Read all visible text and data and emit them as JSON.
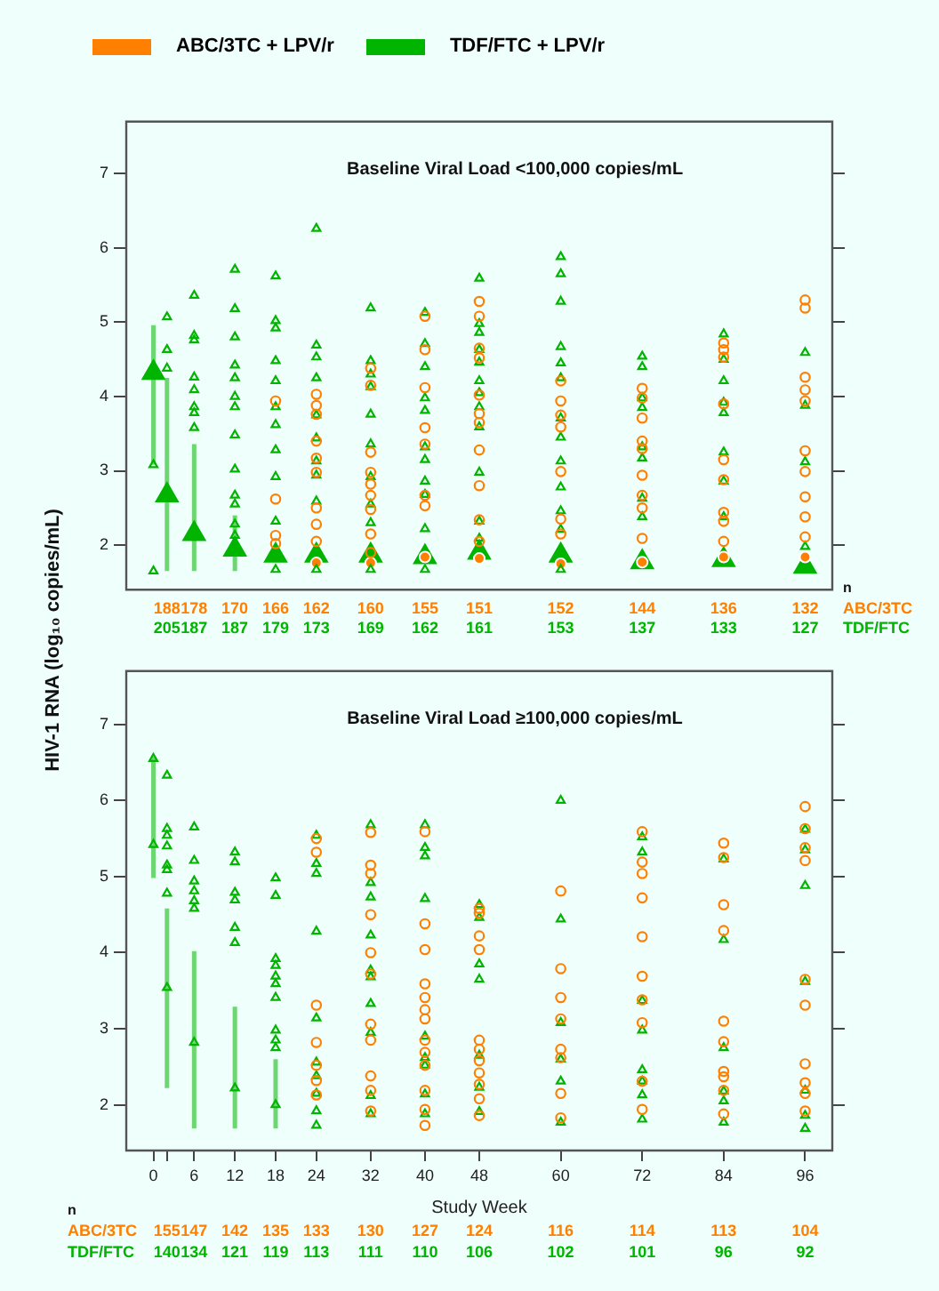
{
  "chart_data": [
    {
      "type": "scatter",
      "title": "Baseline Viral Load <100,000 copies/mL",
      "ylabel": "HIV-1 RNA (log₁₀ copies/mL)",
      "legend": "top",
      "tick_labels": "y",
      "xlim": [
        -4,
        100
      ],
      "ylim": [
        1.4,
        7.7
      ],
      "yticks": [
        2,
        3,
        4,
        5,
        6,
        7
      ],
      "series": [
        {
          "name": "ABC/3TC + LPV/r",
          "color": "#ff7f00",
          "marker": "circle",
          "x": [
            24,
            32,
            40,
            48,
            60,
            72,
            84,
            96
          ],
          "values": [
            1.76,
            1.76,
            1.84,
            1.82,
            1.75,
            1.77,
            1.84,
            1.84
          ]
        },
        {
          "name": "TDF/FTC + LPV/r",
          "color": "#00b400",
          "marker": "triangle",
          "x": [
            0,
            2,
            6,
            12,
            18,
            24,
            32,
            40,
            48,
            60,
            72,
            84,
            96
          ],
          "values": [
            4.32,
            2.67,
            2.15,
            1.94,
            1.86,
            1.86,
            1.86,
            1.84,
            1.9,
            1.86,
            1.77,
            1.8,
            1.71
          ],
          "errors": [
            [
              3.08,
              4.96
            ],
            [
              1.65,
              4.25
            ],
            [
              1.65,
              3.36
            ],
            [
              1.65,
              2.4
            ],
            null,
            null,
            null,
            null,
            null,
            null,
            null,
            null,
            null
          ]
        },
        {
          "color": "#ff7f00",
          "marker": "circle",
          "x": [
            18,
            18,
            18,
            18,
            24,
            24,
            24,
            24,
            24,
            24,
            24,
            24,
            24,
            32,
            32,
            32,
            32,
            32,
            32,
            32,
            32,
            32,
            40,
            40,
            40,
            40,
            40,
            40,
            40,
            48,
            48,
            48,
            48,
            48,
            48,
            48,
            48,
            48,
            48,
            48,
            60,
            60,
            60,
            60,
            60,
            60,
            60,
            72,
            72,
            72,
            72,
            72,
            72,
            72,
            72,
            72,
            84,
            84,
            84,
            84,
            84,
            84,
            84,
            84,
            84,
            96,
            96,
            96,
            96,
            96,
            96,
            96,
            96,
            96,
            96
          ],
          "values": [
            3.94,
            2.62,
            2.13,
            2.02,
            4.03,
            3.88,
            3.76,
            3.4,
            3.17,
            2.98,
            2.5,
            2.28,
            2.05,
            4.38,
            4.15,
            3.25,
            2.98,
            2.82,
            2.67,
            2.48,
            2.15,
            1.9,
            5.08,
            4.63,
            4.12,
            3.58,
            3.36,
            2.67,
            2.53,
            5.28,
            5.08,
            4.65,
            4.52,
            4.02,
            3.77,
            3.65,
            3.28,
            2.8,
            2.34,
            2.05,
            4.21,
            3.94,
            3.75,
            3.59,
            2.99,
            2.35,
            2.15,
            4.11,
            3.98,
            3.71,
            3.4,
            3.3,
            2.94,
            2.67,
            2.5,
            2.09,
            4.72,
            4.63,
            4.53,
            3.9,
            3.15,
            2.88,
            2.44,
            2.32,
            2.05,
            5.3,
            5.19,
            4.26,
            4.09,
            3.94,
            3.27,
            2.99,
            2.65,
            2.38,
            2.11
          ]
        },
        {
          "color": "#00b400",
          "marker": "triangle",
          "x": [
            0,
            0,
            2,
            2,
            2,
            6,
            6,
            6,
            6,
            6,
            6,
            6,
            6,
            12,
            12,
            12,
            12,
            12,
            12,
            12,
            12,
            12,
            12,
            12,
            12,
            12,
            18,
            18,
            18,
            18,
            18,
            18,
            18,
            18,
            18,
            18,
            18,
            24,
            24,
            24,
            24,
            24,
            24,
            24,
            24,
            24,
            24,
            32,
            32,
            32,
            32,
            32,
            32,
            32,
            32,
            32,
            32,
            40,
            40,
            40,
            40,
            40,
            40,
            40,
            40,
            40,
            40,
            40,
            48,
            48,
            48,
            48,
            48,
            48,
            48,
            48,
            48,
            48,
            48,
            48,
            60,
            60,
            60,
            60,
            60,
            60,
            60,
            60,
            60,
            60,
            60,
            60,
            60,
            72,
            72,
            72,
            72,
            72,
            72,
            72,
            72,
            84,
            84,
            84,
            84,
            84,
            84,
            84,
            84,
            96,
            96,
            96,
            96
          ],
          "values": [
            3.08,
            1.65,
            5.07,
            4.63,
            4.38,
            5.36,
            4.82,
            4.76,
            4.26,
            4.09,
            3.86,
            3.78,
            3.58,
            5.71,
            5.18,
            4.8,
            4.42,
            4.25,
            4.0,
            3.86,
            3.48,
            3.02,
            2.67,
            2.55,
            2.28,
            2.13,
            5.62,
            5.02,
            4.92,
            4.48,
            4.21,
            3.86,
            3.62,
            3.28,
            2.92,
            2.32,
            1.67,
            6.26,
            4.69,
            4.53,
            4.25,
            3.75,
            3.44,
            3.13,
            2.94,
            2.59,
            1.67,
            5.19,
            4.48,
            4.3,
            4.13,
            3.76,
            3.36,
            2.92,
            2.55,
            2.3,
            1.67,
            5.13,
            4.71,
            4.4,
            3.98,
            3.81,
            3.32,
            3.15,
            2.86,
            2.68,
            2.22,
            1.67,
            5.59,
            4.98,
            4.86,
            4.63,
            4.46,
            4.21,
            4.05,
            3.86,
            3.59,
            2.98,
            2.32,
            2.09,
            5.88,
            5.65,
            5.28,
            4.67,
            4.45,
            4.25,
            3.71,
            3.45,
            3.13,
            2.78,
            2.46,
            2.21,
            1.67,
            4.54,
            4.4,
            3.98,
            3.85,
            3.32,
            3.17,
            2.63,
            2.38,
            4.84,
            4.5,
            4.21,
            3.92,
            3.78,
            3.25,
            2.86,
            2.38,
            4.59,
            3.88,
            3.12,
            1.98
          ]
        }
      ],
      "annotations": [
        "n",
        "ABC/3TC",
        "TDF/FTC",
        "188",
        "178",
        "170",
        "166",
        "162",
        "160",
        "155",
        "151",
        "152",
        "144",
        "136",
        "132",
        "205",
        "187",
        "187",
        "179",
        "173",
        "169",
        "162",
        "161",
        "153",
        "137",
        "133",
        "127"
      ]
    },
    {
      "type": "scatter",
      "title": "Baseline Viral Load ≥100,000 copies/mL",
      "xlabel": "Study Week",
      "xlim": [
        -4,
        100
      ],
      "ylim": [
        1.4,
        7.7
      ],
      "yticks": [
        2,
        3,
        4,
        5,
        6,
        7
      ],
      "xticks": [
        0,
        {
          "value": 2,
          "label": null
        },
        6,
        12,
        18,
        24,
        32,
        40,
        48,
        60,
        72,
        84,
        96
      ],
      "series": [
        {
          "color": "#ff7f00",
          "marker": "circle",
          "x": [
            32,
            40,
            48,
            60,
            72,
            84,
            96
          ],
          "values": [
            1.92,
            1.94,
            1.86,
            1.83,
            1.94,
            1.88,
            1.92
          ]
        },
        {
          "color": "#00b400",
          "marker": "triangle",
          "x": [
            0,
            2,
            6,
            12,
            18,
            24,
            32,
            40,
            48,
            60,
            72,
            84,
            96
          ],
          "values": [
            5.42,
            3.54,
            2.82,
            2.22,
            2.0,
            1.92,
            1.88,
            1.88,
            1.91,
            1.77,
            1.81,
            1.77,
            1.86
          ],
          "errors": [
            [
              4.98,
              6.58
            ],
            [
              2.22,
              4.58
            ],
            [
              1.69,
              4.02
            ],
            [
              1.69,
              3.29
            ],
            [
              1.69,
              2.6
            ],
            null,
            null,
            null,
            null,
            null,
            null,
            null,
            null
          ]
        },
        {
          "color": "#ff7f00",
          "marker": "circle",
          "x": [
            24,
            24,
            24,
            24,
            24,
            24,
            24,
            32,
            32,
            32,
            32,
            32,
            32,
            32,
            32,
            32,
            32,
            40,
            40,
            40,
            40,
            40,
            40,
            40,
            40,
            40,
            40,
            40,
            40,
            48,
            48,
            48,
            48,
            48,
            48,
            48,
            48,
            48,
            48,
            60,
            60,
            60,
            60,
            60,
            60,
            60,
            72,
            72,
            72,
            72,
            72,
            72,
            72,
            72,
            72,
            84,
            84,
            84,
            84,
            84,
            84,
            84,
            84,
            84,
            96,
            96,
            96,
            96,
            96,
            96,
            96,
            96,
            96
          ],
          "values": [
            5.5,
            5.32,
            3.31,
            2.82,
            2.52,
            2.32,
            2.13,
            5.58,
            5.15,
            5.04,
            4.5,
            4.0,
            3.72,
            3.06,
            2.85,
            2.38,
            2.19,
            5.59,
            4.38,
            4.04,
            3.59,
            3.41,
            3.25,
            3.13,
            2.85,
            2.69,
            2.52,
            2.19,
            1.73,
            4.58,
            4.52,
            4.22,
            4.04,
            2.85,
            2.73,
            2.58,
            2.42,
            2.27,
            2.08,
            4.81,
            3.79,
            3.41,
            3.13,
            2.73,
            2.62,
            2.15,
            5.59,
            5.19,
            5.04,
            4.72,
            4.21,
            3.69,
            3.38,
            3.08,
            2.31,
            5.44,
            5.25,
            4.63,
            4.29,
            3.1,
            2.83,
            2.44,
            2.37,
            2.19,
            5.92,
            5.63,
            5.38,
            5.21,
            3.65,
            3.31,
            2.54,
            2.29,
            2.15
          ]
        },
        {
          "color": "#00b400",
          "marker": "triangle",
          "x": [
            0,
            2,
            2,
            2,
            2,
            2,
            2,
            2,
            6,
            6,
            6,
            6,
            6,
            6,
            12,
            12,
            12,
            12,
            12,
            12,
            18,
            18,
            18,
            18,
            18,
            18,
            18,
            18,
            18,
            18,
            24,
            24,
            24,
            24,
            24,
            24,
            24,
            24,
            24,
            32,
            32,
            32,
            32,
            32,
            32,
            32,
            32,
            32,
            40,
            40,
            40,
            40,
            40,
            40,
            40,
            40,
            48,
            48,
            48,
            48,
            48,
            48,
            60,
            60,
            60,
            60,
            60,
            72,
            72,
            72,
            72,
            72,
            72,
            72,
            84,
            84,
            84,
            84,
            84,
            96,
            96,
            96,
            96,
            96,
            96
          ],
          "values": [
            6.55,
            6.33,
            5.63,
            5.54,
            5.4,
            5.15,
            5.09,
            4.78,
            5.65,
            5.21,
            4.94,
            4.81,
            4.68,
            4.58,
            5.32,
            5.19,
            4.79,
            4.69,
            4.33,
            4.13,
            4.98,
            4.75,
            3.92,
            3.83,
            3.69,
            3.59,
            3.41,
            2.98,
            2.85,
            2.75,
            5.54,
            5.17,
            5.04,
            4.28,
            3.14,
            2.56,
            2.38,
            2.15,
            1.73,
            5.68,
            4.92,
            4.73,
            4.23,
            3.77,
            3.68,
            3.33,
            2.95,
            2.12,
            5.68,
            5.38,
            5.27,
            4.71,
            2.9,
            2.62,
            2.52,
            2.14,
            4.63,
            4.46,
            3.85,
            3.65,
            2.65,
            2.23,
            6.0,
            4.44,
            3.08,
            2.6,
            2.31,
            5.52,
            5.32,
            3.37,
            2.98,
            2.46,
            2.31,
            2.13,
            5.23,
            4.17,
            2.75,
            2.18,
            2.05,
            5.62,
            5.35,
            4.88,
            3.62,
            2.19,
            1.69
          ]
        }
      ],
      "annotations": [
        "n",
        "ABC/3TC",
        "TDF/FTC",
        "155",
        "147",
        "142",
        "135",
        "133",
        "130",
        "127",
        "124",
        "116",
        "114",
        "113",
        "104",
        "140",
        "134",
        "121",
        "119",
        "113",
        "111",
        "110",
        "106",
        "102",
        "101",
        "96",
        "92"
      ]
    }
  ]
}
